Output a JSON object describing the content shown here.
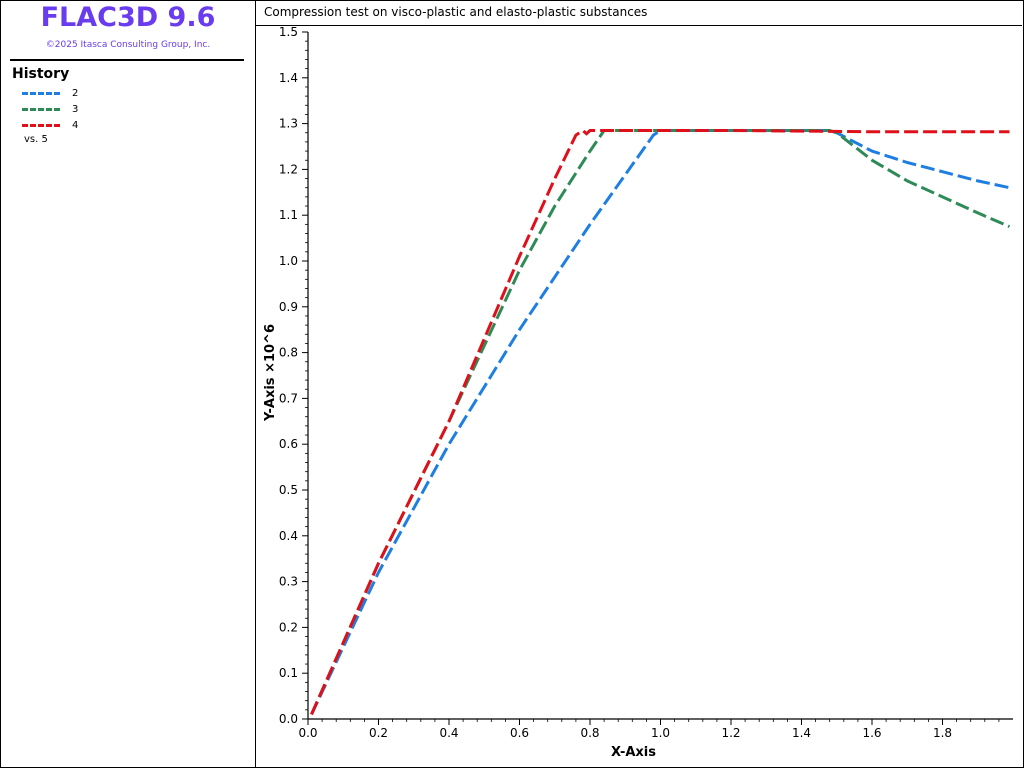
{
  "app": {
    "title": "FLAC3D 9.6",
    "copyright": "©2025 Itasca Consulting Group, Inc."
  },
  "legend": {
    "title": "History",
    "items": [
      {
        "label": "2",
        "color": "#1f7fe0"
      },
      {
        "label": "3",
        "color": "#2e8b57"
      },
      {
        "label": "4",
        "color": "#e0101a"
      }
    ],
    "vs_label": "vs. 5"
  },
  "chart_data": {
    "type": "line",
    "title": "Compression test on visco-plastic and elasto-plastic substances",
    "xlabel": "X-Axis",
    "ylabel": "Y-Axis ×10^6",
    "xlim": [
      0,
      2.0
    ],
    "ylim": [
      0,
      1.5
    ],
    "x_ticks": [
      "0.0",
      "0.2",
      "0.4",
      "0.6",
      "0.8",
      "1.0",
      "1.2",
      "1.4",
      "1.6",
      "1.8"
    ],
    "y_ticks": [
      "0.0",
      "0.1",
      "0.2",
      "0.3",
      "0.4",
      "0.5",
      "0.6",
      "0.7",
      "0.8",
      "0.9",
      "1.0",
      "1.1",
      "1.2",
      "1.3",
      "1.4",
      "1.5"
    ],
    "grid": false,
    "series": [
      {
        "name": "2",
        "color": "#1f7fe0",
        "x": [
          0.01,
          0.2,
          0.4,
          0.6,
          0.8,
          0.98,
          1.0,
          1.2,
          1.48,
          1.5,
          1.6,
          1.7,
          1.8,
          1.9,
          1.99
        ],
        "y": [
          0.01,
          0.32,
          0.6,
          0.85,
          1.08,
          1.275,
          1.285,
          1.285,
          1.285,
          1.28,
          1.24,
          1.215,
          1.195,
          1.175,
          1.16
        ]
      },
      {
        "name": "3",
        "color": "#2e8b57",
        "x": [
          0.01,
          0.2,
          0.4,
          0.6,
          0.7,
          0.8,
          0.84,
          1.0,
          1.2,
          1.48,
          1.5,
          1.6,
          1.7,
          1.8,
          1.9,
          1.99
        ],
        "y": [
          0.01,
          0.34,
          0.65,
          0.98,
          1.12,
          1.24,
          1.285,
          1.285,
          1.285,
          1.285,
          1.28,
          1.22,
          1.175,
          1.14,
          1.105,
          1.075
        ]
      },
      {
        "name": "4",
        "color": "#e0101a",
        "x": [
          0.01,
          0.2,
          0.4,
          0.6,
          0.7,
          0.76,
          0.78,
          0.79,
          0.8,
          1.0,
          1.2,
          1.5,
          1.6,
          1.8,
          1.99
        ],
        "y": [
          0.01,
          0.34,
          0.65,
          1.01,
          1.18,
          1.275,
          1.285,
          1.278,
          1.285,
          1.285,
          1.285,
          1.283,
          1.282,
          1.282,
          1.282
        ]
      }
    ]
  }
}
